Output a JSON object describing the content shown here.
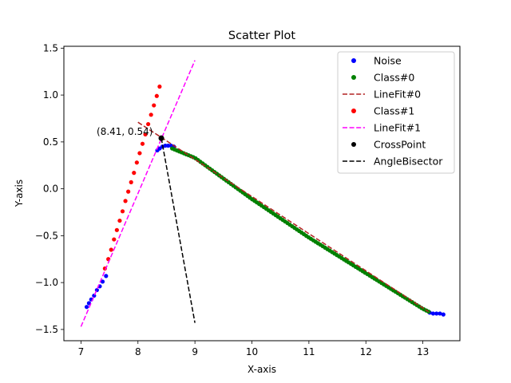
{
  "chart_data": {
    "type": "scatter",
    "title": "Scatter Plot",
    "xlabel": "X-axis",
    "ylabel": "Y-axis",
    "xlim": [
      6.7,
      13.65
    ],
    "ylim": [
      -1.62,
      1.52
    ],
    "xticks": [
      7,
      8,
      9,
      10,
      11,
      12,
      13
    ],
    "yticks": [
      -1.5,
      -1.0,
      -0.5,
      0.0,
      0.5,
      1.0,
      1.5
    ],
    "xtick_labels": [
      "7",
      "8",
      "9",
      "10",
      "11",
      "12",
      "13"
    ],
    "ytick_labels": [
      "−1.5",
      "−1.0",
      "−0.5",
      "0.0",
      "0.5",
      "1.0",
      "1.5"
    ],
    "grid": false,
    "legend_position": "top-right",
    "annotation": {
      "text": "(8.41, 0.54)",
      "x": 8.41,
      "y": 0.54
    },
    "series": [
      {
        "name": "Noise",
        "kind": "scatter",
        "color": "#0000ff",
        "x": [
          7.1,
          7.14,
          7.18,
          7.23,
          7.28,
          7.33,
          7.38,
          7.44,
          8.34,
          8.38,
          8.43,
          8.48,
          8.53,
          8.58,
          8.63,
          13.12,
          13.18,
          13.24,
          13.3,
          13.36
        ],
        "y": [
          -1.26,
          -1.22,
          -1.18,
          -1.14,
          -1.08,
          -1.04,
          -0.99,
          -0.93,
          0.41,
          0.43,
          0.45,
          0.46,
          0.46,
          0.46,
          0.45,
          -1.32,
          -1.33,
          -1.33,
          -1.33,
          -1.34
        ]
      },
      {
        "name": "Class#0",
        "kind": "scatter",
        "color": "#008000",
        "x_range": [
          8.6,
          13.1
        ],
        "count": 110,
        "y_at_x": {
          "8.6": 0.43,
          "9": 0.33,
          "10": -0.11,
          "11": -0.52,
          "12": -0.9,
          "13": -1.28,
          "13.1": -1.31
        }
      },
      {
        "name": "LineFit#0",
        "kind": "line",
        "color": "#b22222",
        "dash": "dashed",
        "x": [
          8.0,
          13.1
        ],
        "y": [
          0.71,
          -1.31
        ]
      },
      {
        "name": "Class#1",
        "kind": "scatter",
        "color": "#ff0000",
        "x": [
          7.42,
          7.48,
          7.53,
          7.58,
          7.63,
          7.68,
          7.73,
          7.78,
          7.83,
          7.88,
          7.93,
          7.98,
          8.03,
          8.08,
          8.13,
          8.18,
          8.23,
          8.28,
          8.33,
          8.38
        ],
        "y": [
          -0.85,
          -0.75,
          -0.65,
          -0.54,
          -0.44,
          -0.34,
          -0.24,
          -0.13,
          -0.03,
          0.07,
          0.17,
          0.28,
          0.38,
          0.48,
          0.58,
          0.69,
          0.79,
          0.89,
          0.99,
          1.09
        ]
      },
      {
        "name": "LineFit#1",
        "kind": "line",
        "color": "#ff00ff",
        "dash": "dashed",
        "x": [
          7.0,
          9.0
        ],
        "y": [
          -1.47,
          1.37
        ]
      },
      {
        "name": "CrossPoint",
        "kind": "scatter",
        "color": "#000000",
        "x": [
          8.41
        ],
        "y": [
          0.54
        ]
      },
      {
        "name": "AngleBisector",
        "kind": "line",
        "color": "#000000",
        "dash": "dashed",
        "x": [
          8.41,
          9.0
        ],
        "y": [
          0.54,
          -1.43
        ]
      }
    ]
  }
}
